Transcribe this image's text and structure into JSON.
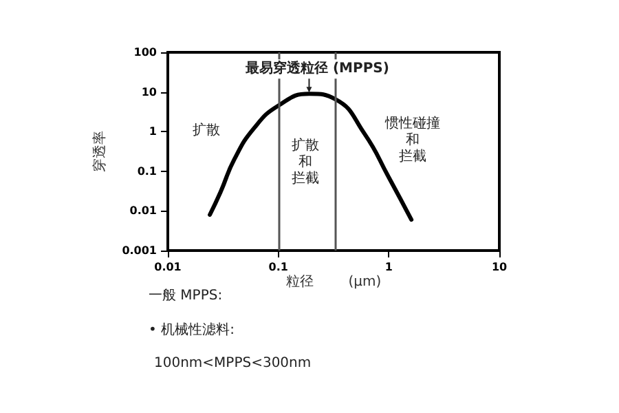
{
  "chart_data": {
    "type": "line",
    "xlabel": "粒径        (μm)",
    "ylabel": "穿透率",
    "log": "xy",
    "xlim": [
      0.01,
      10
    ],
    "ylim": [
      0.001,
      100
    ],
    "xticks": [
      0.01,
      0.1,
      1,
      10
    ],
    "yticks": [
      0.001,
      0.01,
      0.1,
      1,
      10,
      100
    ],
    "grid": false,
    "marker": "none",
    "line_style": "solid",
    "series": [
      {
        "color": "#000000",
        "x": [
          0.024,
          0.03,
          0.04,
          0.06,
          0.1,
          0.19,
          0.33,
          0.6,
          1,
          1.6
        ],
        "values": [
          0.008,
          0.03,
          0.2,
          1.2,
          4.5,
          9,
          6.5,
          0.9,
          0.07,
          0.006
        ]
      }
    ],
    "ref_lines": [
      {
        "axis": "x",
        "value": 0.1,
        "color": "#555555"
      },
      {
        "axis": "x",
        "value": 0.33,
        "color": "#555555"
      }
    ],
    "annotations": [
      {
        "text": "最易穿透粒径 (MPPS)",
        "x": 0.19,
        "y": 9
      },
      "扩散",
      "扩散",
      "和",
      "拦截",
      "惯性碰撞",
      "和",
      "拦截",
      "一般 MPPS:",
      "• 机械性滤料:",
      "100nm<MPPS<300nm"
    ]
  }
}
